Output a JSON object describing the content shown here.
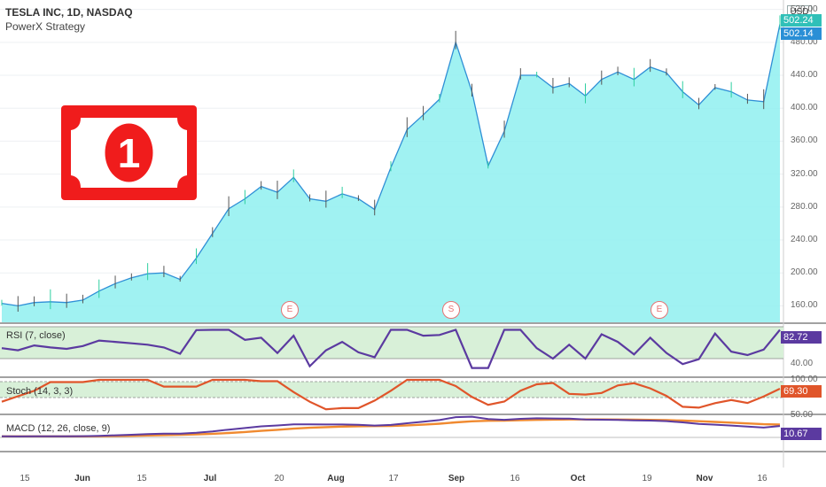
{
  "header": {
    "symbol_line": "TESLA INC, 1D, NASDAQ",
    "strategy": "PowerX Strategy",
    "currency": "USD"
  },
  "price_axis": {
    "ticks": [
      "520.00",
      "480.00",
      "440.00",
      "400.00",
      "360.00",
      "320.00",
      "280.00",
      "240.00",
      "200.00",
      "160.00"
    ],
    "last_price": "502.14",
    "last_price_hidden": "502.24"
  },
  "indicators": {
    "rsi": {
      "label": "RSI (7, close)",
      "value": "82.72",
      "tick": "40.00"
    },
    "stoch": {
      "label": "Stoch (14, 3, 3)",
      "value": "69.30",
      "tick": "100.00"
    },
    "macd": {
      "label": "MACD (12, 26, close, 9)",
      "value": "10.67",
      "tick": "50.00"
    }
  },
  "x_axis": [
    {
      "label": "15",
      "bold": false
    },
    {
      "label": "Jun",
      "bold": true
    },
    {
      "label": "15",
      "bold": false
    },
    {
      "label": "Jul",
      "bold": true
    },
    {
      "label": "20",
      "bold": false
    },
    {
      "label": "Aug",
      "bold": true
    },
    {
      "label": "17",
      "bold": false
    },
    {
      "label": "Sep",
      "bold": true
    },
    {
      "label": "16",
      "bold": false
    },
    {
      "label": "Oct",
      "bold": true
    },
    {
      "label": "19",
      "bold": false
    },
    {
      "label": "Nov",
      "bold": true
    },
    {
      "label": "16",
      "bold": false
    }
  ],
  "event_markers": [
    {
      "letter": "E"
    },
    {
      "letter": "S"
    },
    {
      "letter": "E"
    }
  ],
  "logo": {
    "number": "1"
  },
  "colors": {
    "area_fill": "#8ff0f0",
    "price_line": "#2f8fd6",
    "rsi_line": "#5b3aa0",
    "stoch_line": "#e0552a",
    "macd_line": "#5b3aa0",
    "signal_line": "#f08a30",
    "band_fill": "#d8f0d8",
    "logo_red": "#f01c1c",
    "badge_blue": "#2a8fd6",
    "badge_purple": "#5b3aa0",
    "badge_red": "#e0552a"
  },
  "chart_data": {
    "type": "area",
    "x": [
      "May 11",
      "May 14",
      "May 18",
      "May 21",
      "May 26",
      "May 29",
      "Jun 3",
      "Jun 8",
      "Jun 11",
      "Jun 16",
      "Jun 19",
      "Jun 24",
      "Jun 29",
      "Jul 2",
      "Jul 6",
      "Jul 10",
      "Jul 14",
      "Jul 17",
      "Jul 22",
      "Jul 27",
      "Jul 30",
      "Aug 4",
      "Aug 7",
      "Aug 12",
      "Aug 17",
      "Aug 20",
      "Aug 25",
      "Aug 28",
      "Aug 31",
      "Sep 3",
      "Sep 8",
      "Sep 11",
      "Sep 16",
      "Sep 21",
      "Sep 24",
      "Sep 29",
      "Oct 2",
      "Oct 7",
      "Oct 12",
      "Oct 15",
      "Oct 20",
      "Oct 23",
      "Oct 28",
      "Nov 2",
      "Nov 5",
      "Nov 10",
      "Nov 13",
      "Nov 18",
      "Nov 23"
    ],
    "close": [
      163,
      160,
      164,
      165,
      164,
      167,
      178,
      187,
      194,
      199,
      200,
      192,
      218,
      248,
      278,
      290,
      305,
      298,
      316,
      290,
      287,
      296,
      290,
      277,
      328,
      374,
      392,
      411,
      480,
      420,
      330,
      372,
      440,
      440,
      425,
      430,
      415,
      435,
      444,
      435,
      450,
      443,
      420,
      404,
      425,
      420,
      410,
      408,
      502
    ],
    "ylim": [
      140,
      525
    ]
  }
}
